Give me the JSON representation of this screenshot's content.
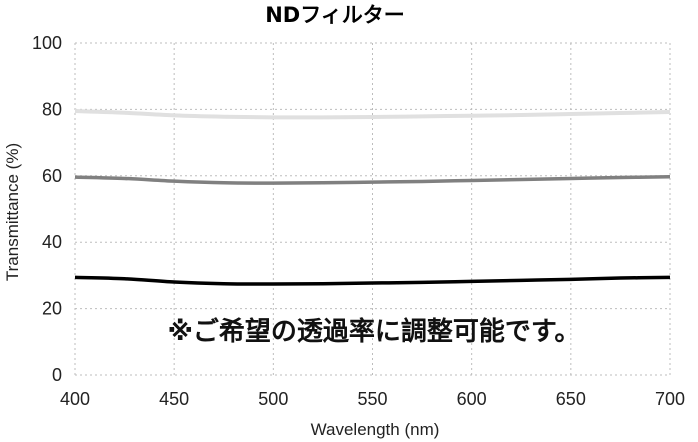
{
  "chart_data": {
    "type": "line",
    "title": "NDフィルター",
    "xlabel": "Wavelength (nm)",
    "ylabel": "Transmittance (%)",
    "xlim": [
      400,
      700
    ],
    "ylim": [
      0,
      100
    ],
    "x_ticks": [
      400,
      450,
      500,
      550,
      600,
      650,
      700
    ],
    "y_ticks": [
      0,
      20,
      40,
      60,
      80,
      100
    ],
    "grid": true,
    "x": [
      400,
      425,
      450,
      475,
      500,
      525,
      550,
      575,
      600,
      625,
      650,
      675,
      700
    ],
    "series": [
      {
        "color": "#e0e0e0",
        "values": [
          79.5,
          79.0,
          78.2,
          77.8,
          77.6,
          77.6,
          77.7,
          77.9,
          78.1,
          78.3,
          78.6,
          78.9,
          79.2
        ]
      },
      {
        "color": "#808080",
        "values": [
          59.6,
          59.2,
          58.4,
          57.9,
          57.8,
          57.9,
          58.1,
          58.3,
          58.6,
          58.9,
          59.2,
          59.5,
          59.7
        ]
      },
      {
        "color": "#000000",
        "values": [
          29.4,
          29.0,
          28.0,
          27.5,
          27.4,
          27.5,
          27.7,
          27.9,
          28.2,
          28.5,
          28.8,
          29.2,
          29.4
        ]
      }
    ],
    "annotation": "※ご希望の透過率に調整可能です。"
  }
}
